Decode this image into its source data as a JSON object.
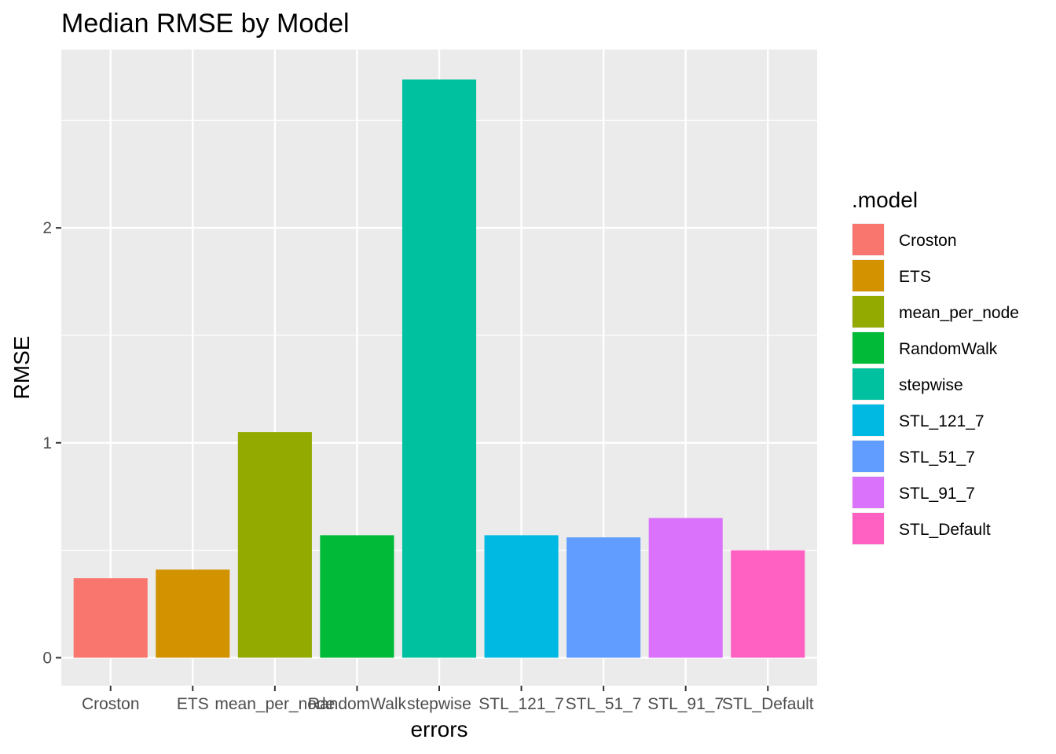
{
  "chart_data": {
    "type": "bar",
    "title": "Median RMSE by Model",
    "xlabel": "errors",
    "ylabel": "RMSE",
    "categories": [
      "Croston",
      "ETS",
      "mean_per_node",
      "RandomWalk",
      "stepwise",
      "STL_121_7",
      "STL_51_7",
      "STL_91_7",
      "STL_Default"
    ],
    "values": [
      0.37,
      0.41,
      1.05,
      0.57,
      2.69,
      0.57,
      0.56,
      0.65,
      0.5
    ],
    "colors": [
      "#F8766D",
      "#D39200",
      "#93AA00",
      "#00BA38",
      "#00C19F",
      "#00B9E3",
      "#619CFF",
      "#DB72FB",
      "#FF61C3"
    ],
    "ylim": [
      -0.13,
      2.83
    ],
    "yticks": [
      0,
      1,
      2
    ],
    "ytick_labels": [
      "0",
      "1",
      "2"
    ],
    "grid": true,
    "panel_background": "#EBEBEB",
    "legend": {
      "title": ".model",
      "position": "right",
      "entries": [
        "Croston",
        "ETS",
        "mean_per_node",
        "RandomWalk",
        "stepwise",
        "STL_121_7",
        "STL_51_7",
        "STL_91_7",
        "STL_Default"
      ]
    }
  }
}
